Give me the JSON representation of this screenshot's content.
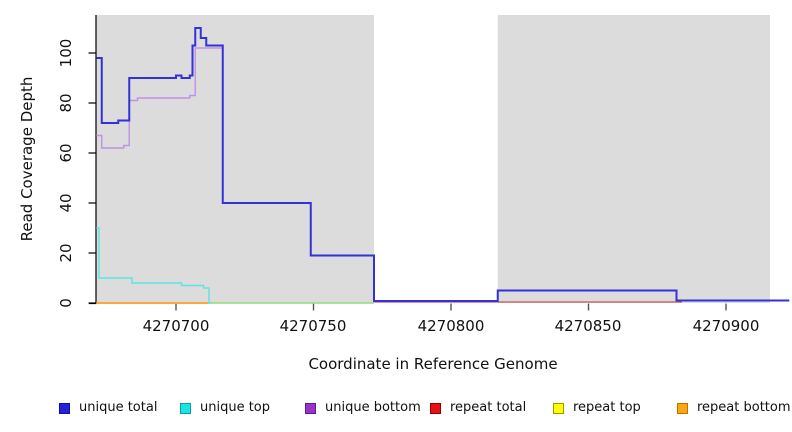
{
  "figure": {
    "background": "#ffffff"
  },
  "chart_data": {
    "type": "step-line",
    "title": "",
    "xlabel": "Coordinate in Reference Genome",
    "ylabel": "Read Coverage Depth",
    "xlim": [
      4270671,
      4270924
    ],
    "ylim": [
      0,
      115
    ],
    "x_ticks": [
      4270700,
      4270750,
      4270800,
      4270850,
      4270900
    ],
    "y_ticks": [
      0,
      20,
      40,
      60,
      80,
      100
    ],
    "grid": false,
    "plot_background": "#DCDCDC",
    "gap_region": {
      "from": 4270772,
      "to": 4270817,
      "color": "#FFFFFF"
    },
    "coverage_region": {
      "from": 4270671,
      "to": 4270916
    },
    "series": [
      {
        "name": "unique total",
        "color": "#3232D8",
        "width": 2,
        "z": 6,
        "end": 4270923,
        "steps": [
          [
            4270671,
            98
          ],
          [
            4270673,
            72
          ],
          [
            4270679,
            73
          ],
          [
            4270683,
            90
          ],
          [
            4270700,
            91
          ],
          [
            4270702,
            90
          ],
          [
            4270705,
            91
          ],
          [
            4270706,
            103
          ],
          [
            4270707,
            110
          ],
          [
            4270709,
            106
          ],
          [
            4270711,
            103
          ],
          [
            4270717,
            40
          ],
          [
            4270749,
            19
          ],
          [
            4270772,
            0.8
          ],
          [
            4270817,
            5
          ],
          [
            4270882,
            1
          ]
        ]
      },
      {
        "name": "unique top",
        "color": "#5CE4E4",
        "width": 1.4,
        "z": 7,
        "end": 4270713,
        "steps": [
          [
            4270671,
            30
          ],
          [
            4270672,
            10
          ],
          [
            4270684,
            8
          ],
          [
            4270702,
            7
          ],
          [
            4270710,
            6
          ],
          [
            4270712,
            0
          ]
        ]
      },
      {
        "name": "unique bottom",
        "color": "#C192E4",
        "width": 1.4,
        "z": 5,
        "end": 4270923,
        "steps": [
          [
            4270671,
            67
          ],
          [
            4270673,
            62
          ],
          [
            4270681,
            63
          ],
          [
            4270683,
            81
          ],
          [
            4270686,
            82
          ],
          [
            4270705,
            83
          ],
          [
            4270707,
            102
          ],
          [
            4270717,
            40
          ],
          [
            4270749,
            19
          ],
          [
            4270772,
            0.8
          ],
          [
            4270817,
            5
          ],
          [
            4270882,
            1
          ]
        ]
      },
      {
        "name": "repeat total",
        "color": "#CC5252",
        "width": 1.3,
        "z": 4,
        "end": 4270884,
        "steps": [
          [
            4270772,
            0.4
          ]
        ]
      },
      {
        "name": "repeat top",
        "color": "#F2F200",
        "width": 1.3,
        "z": 1,
        "end": 4270772,
        "steps": [
          [
            4270671,
            0
          ]
        ]
      },
      {
        "name": "repeat bottom",
        "color": "#FF9D2E",
        "width": 1.7,
        "z": 2,
        "end": 4270712,
        "steps": [
          [
            4270671,
            0
          ]
        ]
      }
    ],
    "blend_segments": [
      {
        "name": "unique-top-over-repeat-top-overlap",
        "color": "#8FDD8F",
        "width": 1.4,
        "z": 3,
        "end": 4270772,
        "steps": [
          [
            4270712,
            0
          ]
        ]
      }
    ]
  },
  "legend": {
    "items": [
      {
        "label": "unique total",
        "fill": "#2222DD",
        "border": "#1010A0"
      },
      {
        "label": "unique top",
        "fill": "#18E6E6",
        "border": "#0E9E9E"
      },
      {
        "label": "unique bottom",
        "fill": "#9932CC",
        "border": "#5E1C8E"
      },
      {
        "label": "repeat total",
        "fill": "#E81010",
        "border": "#8B0000"
      },
      {
        "label": "repeat top",
        "fill": "#FFFF00",
        "border": "#9A9A00"
      },
      {
        "label": "repeat bottom",
        "fill": "#FFA510",
        "border": "#B87400"
      }
    ]
  }
}
